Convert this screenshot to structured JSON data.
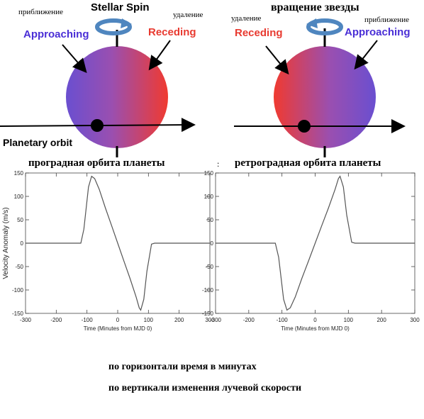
{
  "left_panel": {
    "ru_approaching": "приближение",
    "spin_title": "Stellar Spin",
    "ru_receding": "удаление",
    "approaching": "Approaching",
    "receding": "Receding",
    "orbit_label": "Planetary orbit",
    "caption_ru": "проградная орбита планеты"
  },
  "right_panel": {
    "ru_receding": "удаление",
    "spin_title_ru": "вращение звезды",
    "ru_approaching": "приближение",
    "receding": "Receding",
    "approaching": "Approaching",
    "caption_ru": "ретроградная орбита планеты"
  },
  "separator": ":",
  "bottom_text": {
    "line1": "по горизонтали время в минутах",
    "line2": "по вертикали изменения лучевой скорости"
  },
  "colors": {
    "approaching": "#4a2fd6",
    "receding": "#e83a30",
    "spin_arrow": "#4f86bf"
  },
  "chart_data": [
    {
      "type": "line",
      "ylabel": "Velocity Anomaly (m/s)",
      "xlabel": "Time (Minutes from MJD 0)",
      "xlim": [
        -300,
        300
      ],
      "ylim": [
        -150,
        150
      ],
      "xticks": [
        -300,
        -200,
        -100,
        0,
        100,
        200,
        300
      ],
      "yticks": [
        150,
        100,
        50,
        0,
        -50,
        -100,
        -150
      ],
      "x": [
        -300,
        -120,
        -110,
        -95,
        -85,
        -75,
        -60,
        -40,
        -20,
        0,
        20,
        40,
        60,
        70,
        75,
        85,
        95,
        110,
        120,
        300
      ],
      "y": [
        0,
        0,
        30,
        120,
        143,
        138,
        115,
        75,
        38,
        0,
        -38,
        -75,
        -115,
        -138,
        -143,
        -120,
        -60,
        -2,
        0,
        0
      ]
    },
    {
      "type": "line",
      "ylabel": "",
      "xlabel": "Time (Minutes from MJD 0)",
      "xlim": [
        -300,
        300
      ],
      "ylim": [
        -150,
        150
      ],
      "xticks": [
        -300,
        -200,
        -100,
        0,
        100,
        200,
        300
      ],
      "yticks": [
        150,
        100,
        50,
        0,
        -50,
        -100,
        -150
      ],
      "x": [
        -300,
        -120,
        -110,
        -95,
        -85,
        -75,
        -60,
        -40,
        -20,
        0,
        20,
        40,
        60,
        70,
        75,
        85,
        95,
        110,
        120,
        300
      ],
      "y": [
        0,
        0,
        -30,
        -120,
        -143,
        -138,
        -115,
        -75,
        -38,
        0,
        38,
        75,
        115,
        138,
        143,
        120,
        60,
        2,
        0,
        0
      ]
    }
  ]
}
